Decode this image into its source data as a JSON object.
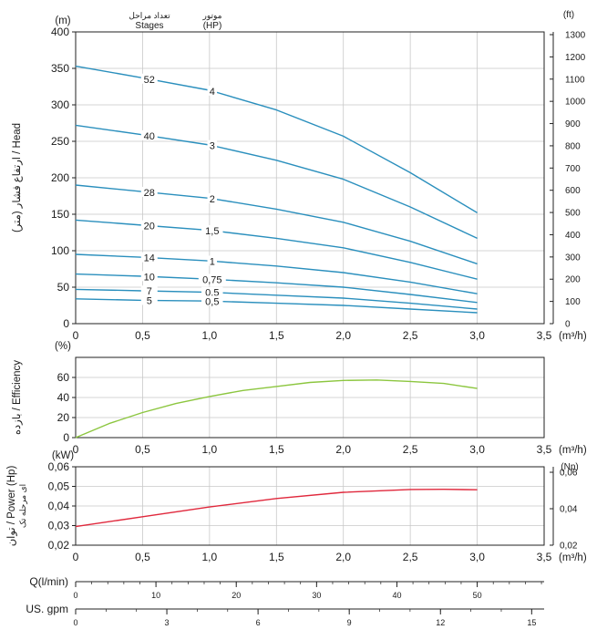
{
  "chart_data": [
    {
      "id": "head",
      "type": "line",
      "ylabel": "ارتفاع فشار (متر) / Head",
      "y_unit": "(m)",
      "y2_unit": "(ft)",
      "x_unit": "(m³/h)",
      "ylim": [
        0,
        400
      ],
      "xlim": [
        0,
        3.5
      ],
      "yticks": [
        "0",
        "50",
        "100",
        "150",
        "200",
        "250",
        "300",
        "350",
        "400"
      ],
      "y2ticks": [
        "0",
        "100",
        "200",
        "300",
        "400",
        "500",
        "600",
        "700",
        "800",
        "900",
        "1000",
        "1100",
        "1200",
        "1300"
      ],
      "xticks": [
        "0",
        "0,5",
        "1,0",
        "1,5",
        "2,0",
        "2,5",
        "3,0",
        "3,5"
      ],
      "stages_header": [
        "تعداد مراحل",
        "Stages"
      ],
      "motor_header": [
        "موتور",
        "(HP)"
      ],
      "color": "#2a8fbd",
      "series": [
        {
          "stages": "52",
          "hp": "4",
          "x": [
            0,
            0.5,
            1.0,
            1.5,
            2.0,
            2.5,
            3.0
          ],
          "y": [
            353,
            337,
            320,
            293,
            257,
            207,
            152
          ]
        },
        {
          "stages": "40",
          "hp": "3",
          "x": [
            0,
            0.5,
            1.0,
            1.5,
            2.0,
            2.5,
            3.0
          ],
          "y": [
            272,
            259,
            245,
            224,
            198,
            160,
            117
          ]
        },
        {
          "stages": "28",
          "hp": "2",
          "x": [
            0,
            0.5,
            1.0,
            1.5,
            2.0,
            2.5,
            3.0
          ],
          "y": [
            190,
            181,
            172,
            157,
            139,
            113,
            82
          ]
        },
        {
          "stages": "20",
          "hp": "1,5",
          "x": [
            0,
            0.5,
            1.0,
            1.5,
            2.0,
            2.5,
            3.0
          ],
          "y": [
            142,
            135,
            128,
            117,
            104,
            84,
            61
          ]
        },
        {
          "stages": "14",
          "hp": "1",
          "x": [
            0,
            0.5,
            1.0,
            1.5,
            2.0,
            2.5,
            3.0
          ],
          "y": [
            95,
            91,
            86,
            79,
            70,
            57,
            41
          ]
        },
        {
          "stages": "10",
          "hp": "0,75",
          "x": [
            0,
            0.5,
            1.0,
            1.5,
            2.0,
            2.5,
            3.0
          ],
          "y": [
            68,
            65,
            61,
            56,
            50,
            40,
            29
          ]
        },
        {
          "stages": "7",
          "hp": "0,5",
          "x": [
            0,
            0.5,
            1.0,
            1.5,
            2.0,
            2.5,
            3.0
          ],
          "y": [
            47,
            45,
            43,
            39,
            35,
            28,
            20
          ]
        },
        {
          "stages": "5",
          "hp": "0,5",
          "x": [
            0,
            0.5,
            1.0,
            1.5,
            2.0,
            2.5,
            3.0
          ],
          "y": [
            34,
            32,
            31,
            28,
            25,
            20,
            15
          ]
        }
      ]
    },
    {
      "id": "efficiency",
      "type": "line",
      "ylabel": "بازده / Efficiency",
      "y_unit": "(%)",
      "x_unit": "(m³/h)",
      "ylim": [
        0,
        80
      ],
      "xlim": [
        0,
        3.5
      ],
      "yticks": [
        "0",
        "20",
        "40",
        "60"
      ],
      "xticks": [
        "0",
        "0,5",
        "1,0",
        "1,5",
        "2,0",
        "2,5",
        "3,0",
        "3,5"
      ],
      "color": "#8cc63f",
      "series": [
        {
          "x": [
            0,
            0.25,
            0.5,
            0.75,
            1.0,
            1.25,
            1.5,
            1.75,
            2.0,
            2.25,
            2.5,
            2.75,
            3.0
          ],
          "y": [
            0,
            14,
            25,
            34,
            41,
            47,
            51,
            55,
            57,
            57.5,
            56,
            54,
            49
          ]
        }
      ]
    },
    {
      "id": "power",
      "type": "line",
      "ylabel": "توان / Power (Hp)",
      "ylabel2": "ای مرحله تک",
      "y_unit": "(kW)",
      "y2_unit": "(Np)",
      "x_unit": "(m³/h)",
      "ylim": [
        0.02,
        0.06
      ],
      "xlim": [
        0,
        3.5
      ],
      "yticks": [
        "0,02",
        "0,03",
        "0,04",
        "0,05",
        "0,06"
      ],
      "y2ticks": [
        "0,02",
        "0,04",
        "0,06"
      ],
      "xticks": [
        "0",
        "0,5",
        "1,0",
        "1,5",
        "2,0",
        "2,5",
        "3,0",
        "3,5"
      ],
      "color": "#e0283c",
      "series": [
        {
          "x": [
            0,
            0.5,
            1.0,
            1.5,
            2.0,
            2.5,
            2.75,
            3.0
          ],
          "y": [
            0.0295,
            0.0345,
            0.0395,
            0.0438,
            0.047,
            0.0484,
            0.0485,
            0.0483
          ]
        }
      ]
    }
  ],
  "secondary_axes": {
    "lpm": {
      "label": "Q(l/min)",
      "ticks": [
        "0",
        "10",
        "20",
        "30",
        "40",
        "50"
      ]
    },
    "gpm": {
      "label": "US. gpm",
      "ticks": [
        "0",
        "3",
        "6",
        "9",
        "12",
        "15"
      ]
    }
  }
}
